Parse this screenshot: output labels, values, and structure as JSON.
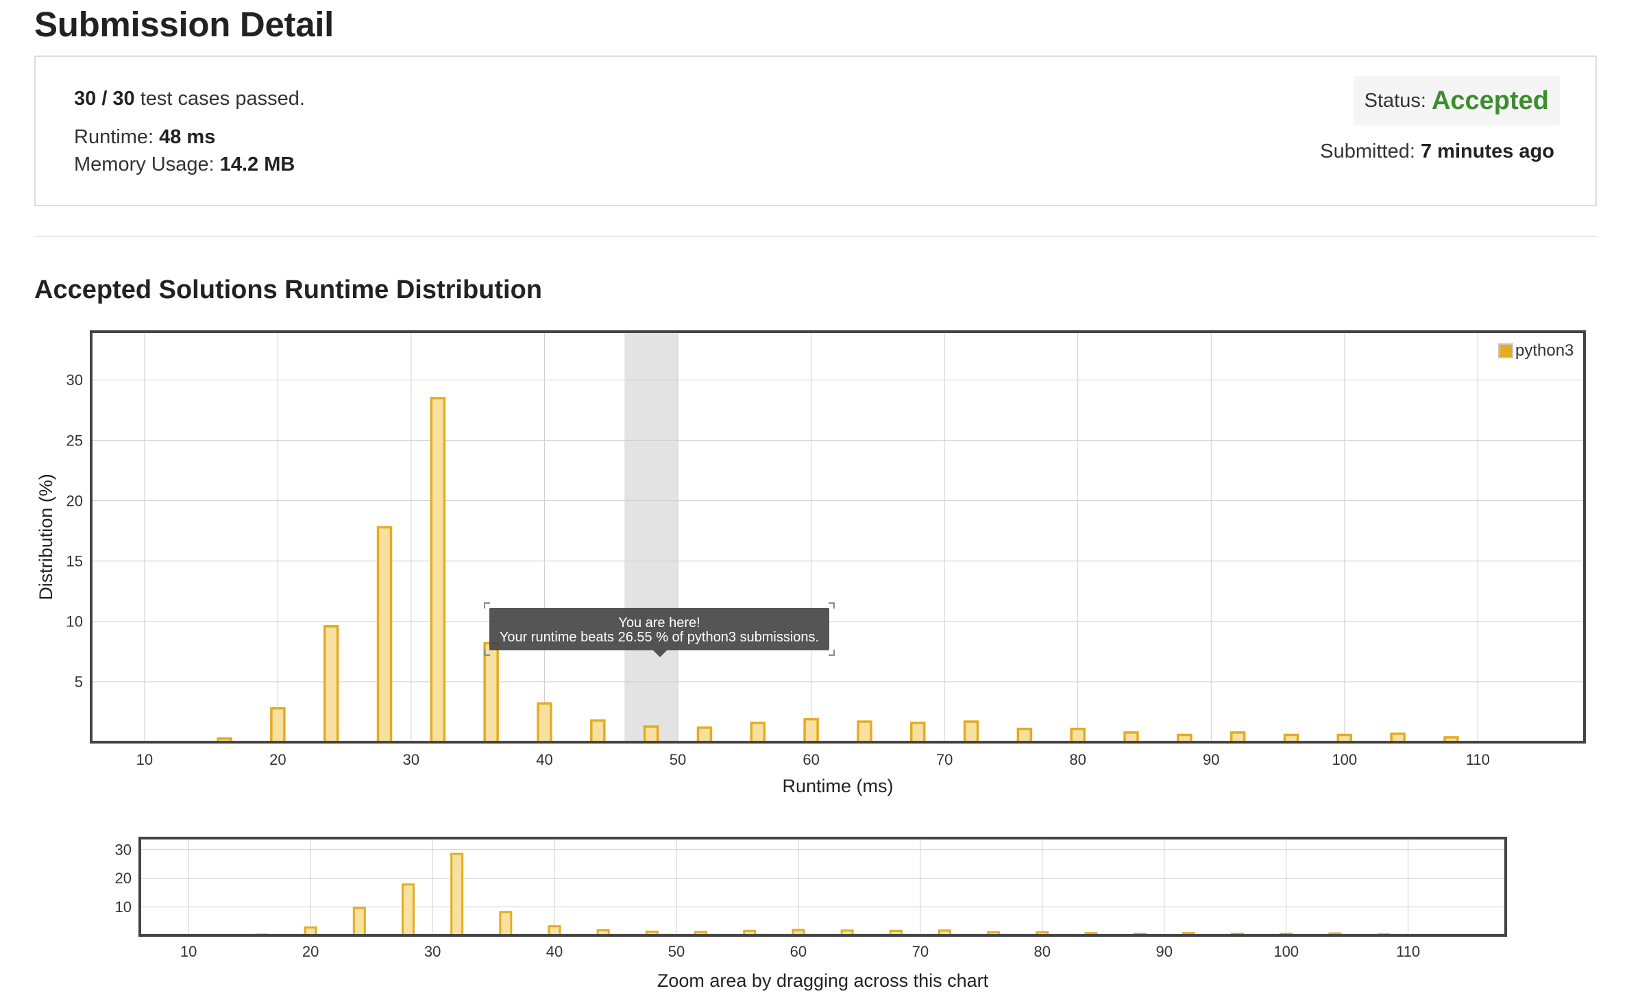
{
  "page_title": "Submission Detail",
  "summary": {
    "passed": "30 / 30",
    "passed_suffix": "test cases passed.",
    "runtime_label": "Runtime:",
    "runtime_value": "48 ms",
    "memory_label": "Memory Usage:",
    "memory_value": "14.2 MB",
    "status_label": "Status:",
    "status_value": "Accepted",
    "submitted_label": "Submitted:",
    "submitted_value": "7 minutes ago"
  },
  "colors": {
    "accepted": "#3c8d2f",
    "bar_fill": "#f7e0a0",
    "bar_stroke": "#e2ad20",
    "highlight_band": "#e3e3e3",
    "grid": "#cfcfcf",
    "frame": "#444444"
  },
  "section_title": "Accepted Solutions Runtime Distribution",
  "tooltip": {
    "line1": "You are here!",
    "line2": "Your runtime beats 26.55 % of python3 submissions."
  },
  "chart_data": [
    {
      "type": "bar",
      "xlabel": "Runtime (ms)",
      "ylabel": "Distribution (%)",
      "legend": "python3",
      "legend_position": "top-right",
      "grid": true,
      "xlim": [
        6,
        118
      ],
      "ylim": [
        0,
        34
      ],
      "xticks": [
        10,
        20,
        30,
        40,
        50,
        60,
        70,
        80,
        90,
        100,
        110
      ],
      "yticks": [
        5,
        10,
        15,
        20,
        25,
        30
      ],
      "highlight_range": [
        46,
        50
      ],
      "series": [
        {
          "name": "python3",
          "x": [
            16,
            20,
            24,
            28,
            32,
            36,
            40,
            44,
            48,
            52,
            56,
            60,
            64,
            68,
            72,
            76,
            80,
            84,
            88,
            92,
            96,
            100,
            104,
            108
          ],
          "values": [
            0.3,
            2.8,
            9.6,
            17.8,
            28.5,
            8.2,
            3.2,
            1.8,
            1.3,
            1.2,
            1.6,
            1.9,
            1.7,
            1.6,
            1.7,
            1.1,
            1.1,
            0.8,
            0.6,
            0.8,
            0.6,
            0.6,
            0.7,
            0.4
          ]
        }
      ]
    },
    {
      "type": "bar",
      "xlabel": "Zoom area by dragging across this chart",
      "grid": true,
      "xlim": [
        6,
        118
      ],
      "ylim": [
        0,
        34
      ],
      "xticks": [
        10,
        20,
        30,
        40,
        50,
        60,
        70,
        80,
        90,
        100,
        110
      ],
      "yticks": [
        10,
        20,
        30
      ],
      "series": [
        {
          "name": "python3",
          "x": [
            16,
            20,
            24,
            28,
            32,
            36,
            40,
            44,
            48,
            52,
            56,
            60,
            64,
            68,
            72,
            76,
            80,
            84,
            88,
            92,
            96,
            100,
            104,
            108
          ],
          "values": [
            0.3,
            2.8,
            9.6,
            17.8,
            28.5,
            8.2,
            3.2,
            1.8,
            1.3,
            1.2,
            1.6,
            1.9,
            1.7,
            1.6,
            1.7,
            1.1,
            1.1,
            0.8,
            0.6,
            0.8,
            0.6,
            0.6,
            0.7,
            0.4
          ]
        }
      ]
    }
  ]
}
